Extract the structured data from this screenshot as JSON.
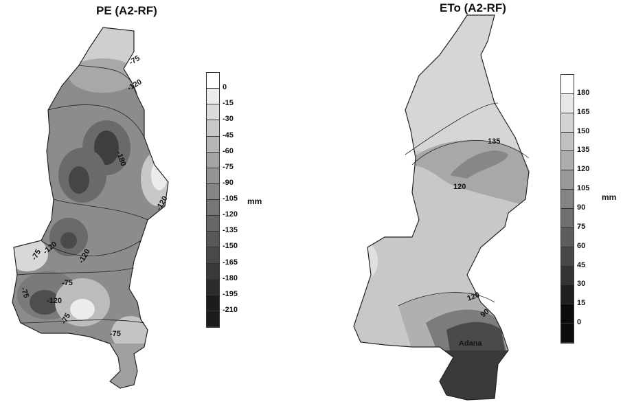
{
  "maps": [
    {
      "title": "PE (A2-RF)",
      "unit": "mm",
      "legend_levels": [
        "0",
        "-15",
        "-30",
        "-45",
        "-60",
        "-75",
        "-90",
        "-105",
        "-120",
        "-135",
        "-150",
        "-165",
        "-180",
        "-195",
        "-210"
      ],
      "contour_labels": [
        "-75",
        "-120",
        "-180",
        "-120",
        "-75",
        "-120",
        "-120",
        "-75",
        "-75",
        "-120",
        "-75",
        "-75"
      ]
    },
    {
      "title": "ETo  (A2-RF)",
      "unit": "mm",
      "legend_levels": [
        "180",
        "165",
        "150",
        "135",
        "120",
        "105",
        "90",
        "75",
        "60",
        "45",
        "30",
        "15",
        "0"
      ],
      "contour_labels": [
        "135",
        "120",
        "120",
        "90"
      ],
      "place_label": "Adana"
    }
  ],
  "colors": {
    "pe_ramp": [
      "#ffffff",
      "#ececec",
      "#dadada",
      "#c8c8c8",
      "#b6b6b6",
      "#a4a4a4",
      "#949494",
      "#858585",
      "#767676",
      "#676767",
      "#585858",
      "#494949",
      "#3a3a3a",
      "#2b2b2b",
      "#1c1c1c"
    ],
    "eto_ramp": [
      "#ffffff",
      "#e8e8e8",
      "#d4d4d4",
      "#c0c0c0",
      "#acacac",
      "#989898",
      "#848484",
      "#707070",
      "#5c5c5c",
      "#484848",
      "#343434",
      "#202020",
      "#0c0c0c"
    ]
  }
}
